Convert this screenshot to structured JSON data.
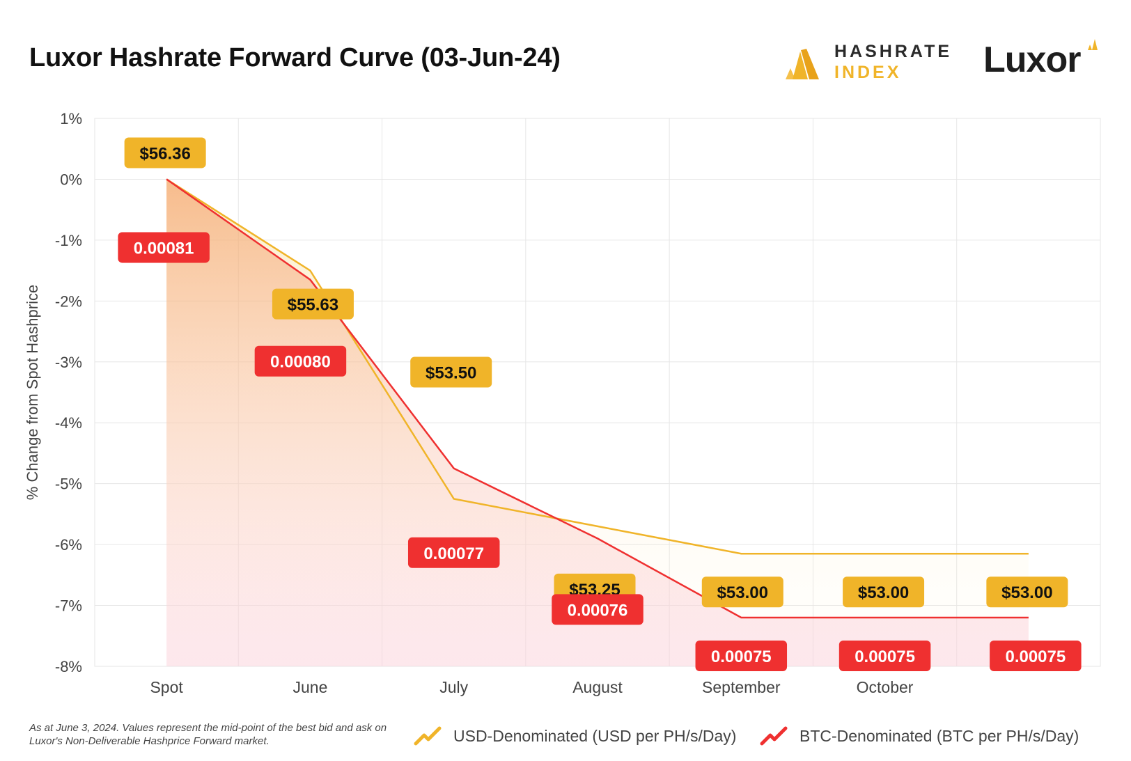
{
  "title": "Luxor Hashrate Forward Curve (03-Jun-24)",
  "brands": {
    "hashrate_index_line1": "HASHRATE",
    "hashrate_index_line2": "INDEX",
    "luxor": "Luxor"
  },
  "colors": {
    "usd": "#f0b429",
    "btc": "#ef3030",
    "grid": "#e6e6e6",
    "axis_text": "#444444"
  },
  "chart_data": {
    "type": "line",
    "title": "Luxor Hashrate Forward Curve (03-Jun-24)",
    "xlabel": "",
    "ylabel": "% Change from Spot Hashprice",
    "ylim": [
      -8,
      1
    ],
    "yticks": [
      "1%",
      "0%",
      "-1%",
      "-2%",
      "-3%",
      "-4%",
      "-5%",
      "-6%",
      "-7%",
      "-8%"
    ],
    "yticks_values": [
      1,
      0,
      -1,
      -2,
      -3,
      -4,
      -5,
      -6,
      -7,
      -8
    ],
    "categories": [
      "Spot",
      "June",
      "July",
      "August",
      "September",
      "October",
      ""
    ],
    "grid": true,
    "series": [
      {
        "name": "USD-Denominated (USD per PH/s/Day)",
        "values": [
          0,
          -1.5,
          -5.25,
          -5.7,
          -6.15,
          -6.15,
          -6.15
        ],
        "labels": [
          "$56.36",
          "$55.63",
          "$53.50",
          "$53.25",
          "$53.00",
          "$53.00",
          "$53.00"
        ]
      },
      {
        "name": "BTC-Denominated (BTC per PH/s/Day)",
        "values": [
          0,
          -1.65,
          -4.75,
          -5.9,
          -7.2,
          -7.2,
          -7.2
        ],
        "labels": [
          "0.00081",
          "0.00080",
          "0.00077",
          "0.00076",
          "0.00075",
          "0.00075",
          "0.00075"
        ]
      }
    ],
    "legend_position": "bottom-right"
  },
  "footnote": "As at June 3, 2024. Values represent the mid-point of the best bid and ask on Luxor's Non-Deliverable Hashprice Forward market.",
  "legend": {
    "usd": "USD-Denominated (USD per PH/s/Day)",
    "btc": "BTC-Denominated (BTC per PH/s/Day)"
  }
}
